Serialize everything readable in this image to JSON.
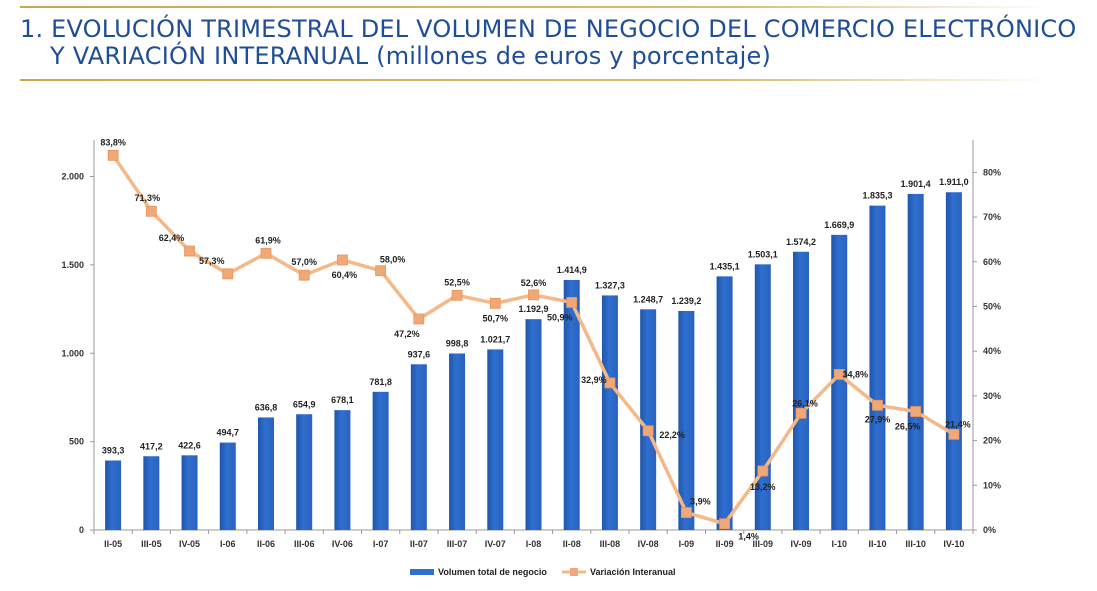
{
  "header": {
    "title_line1": "1. EVOLUCIÓN TRIMESTRAL DEL VOLUMEN DE NEGOCIO DEL COMERCIO ELECTRÓNICO",
    "title_line2": "Y VARIACIÓN INTERANUAL (millones de euros y porcentaje)"
  },
  "colors": {
    "bars": "#2f6fcf",
    "line": "#f5b887",
    "marker": "#f0a878",
    "title": "#1f4e96",
    "rule": "#c7a84a"
  },
  "chart_data": {
    "type": "bar",
    "categories": [
      "II-05",
      "III-05",
      "IV-05",
      "I-06",
      "II-06",
      "III-06",
      "IV-06",
      "I-07",
      "II-07",
      "III-07",
      "IV-07",
      "I-08",
      "II-08",
      "III-08",
      "IV-08",
      "I-09",
      "II-09",
      "III-09",
      "IV-09",
      "I-10",
      "II-10",
      "III-10",
      "IV-10"
    ],
    "series": [
      {
        "name": "Volumen total de negocio",
        "type": "bar",
        "axis": "left",
        "values": [
          393.3,
          417.2,
          422.6,
          494.7,
          636.8,
          654.9,
          678.1,
          781.8,
          937.6,
          998.8,
          1021.7,
          1192.9,
          1414.9,
          1327.3,
          1248.7,
          1239.2,
          1435.1,
          1503.1,
          1574.2,
          1669.9,
          1835.3,
          1901.4,
          1911.0
        ],
        "labels": [
          "393,3",
          "417,2",
          "422,6",
          "494,7",
          "636,8",
          "654,9",
          "678,1",
          "781,8",
          "937,6",
          "998,8",
          "1.021,7",
          "1.192,9",
          "1.414,9",
          "1.327,3",
          "1.248,7",
          "1.239,2",
          "1.435,1",
          "1.503,1",
          "1.574,2",
          "1.669,9",
          "1.835,3",
          "1.901,4",
          "1.911,0"
        ]
      },
      {
        "name": "Variación Interanual",
        "type": "line",
        "axis": "right",
        "values": [
          83.8,
          71.3,
          62.4,
          57.3,
          61.9,
          57.0,
          60.4,
          58.0,
          47.2,
          52.5,
          50.7,
          52.6,
          50.9,
          32.9,
          22.2,
          3.9,
          1.4,
          13.2,
          26.1,
          34.8,
          27.9,
          26.5,
          21.4
        ],
        "labels": [
          "83,8%",
          "71,3%",
          "62,4%",
          "57,3%",
          "61,9%",
          "57,0%",
          "60,4%",
          "58,0%",
          "47,2%",
          "52,5%",
          "50,7%",
          "52,6%",
          "50,9%",
          "32,9%",
          "22,2%",
          "3,9%",
          "1,4%",
          "13,2%",
          "26,1%",
          "34,8%",
          "27,9%",
          "26,5%",
          "21,4%"
        ]
      }
    ],
    "y_left": {
      "ylim": [
        0,
        2150
      ],
      "ticks": [
        0,
        500,
        1000,
        1500,
        2000
      ],
      "tick_labels": [
        "0",
        "500",
        "1.000",
        "1.500",
        "2.000"
      ]
    },
    "y_right": {
      "ylim": [
        0,
        85
      ],
      "ticks": [
        0,
        10,
        20,
        30,
        40,
        50,
        60,
        70,
        80
      ],
      "tick_labels": [
        "0%",
        "10%",
        "20%",
        "30%",
        "40%",
        "50%",
        "60%",
        "70%",
        "80%"
      ]
    },
    "legend": {
      "placement": "bottom-center",
      "entries": [
        "Volumen total de negocio",
        "Variación Interanual"
      ]
    }
  }
}
